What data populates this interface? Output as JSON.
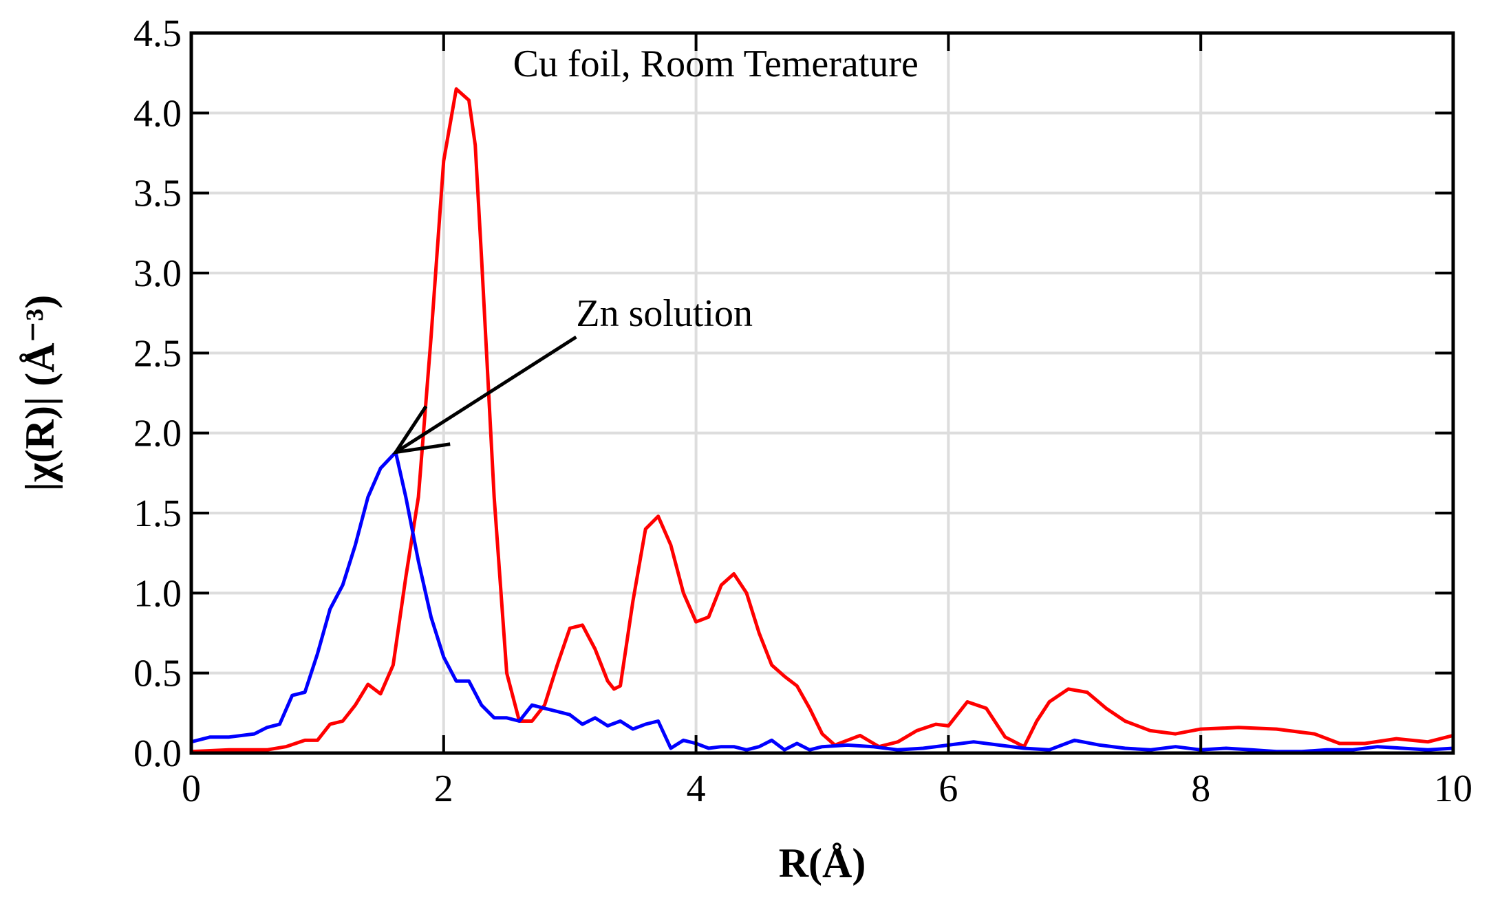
{
  "chart_data": {
    "type": "line",
    "title": "",
    "xlabel": "R(Å)",
    "ylabel": "|χ(R)| (Å⁻³)",
    "xlim": [
      0,
      10
    ],
    "ylim": [
      0,
      4.5
    ],
    "xticks": [
      0,
      2,
      4,
      6,
      8,
      10
    ],
    "xtick_labels": [
      "0",
      "2",
      "4",
      "6",
      "8",
      "10"
    ],
    "yticks": [
      0,
      0.5,
      1,
      1.5,
      2,
      2.5,
      3,
      3.5,
      4,
      4.5
    ],
    "ytick_labels": [
      "0.0",
      "0.5",
      "1.0",
      "1.5",
      "2.0",
      "2.5",
      "3.0",
      "3.5",
      "4.0",
      "4.5"
    ],
    "grid": true,
    "legend": "none",
    "annotations": [
      {
        "text": "Cu foil, Room Temerature",
        "x": 2.55,
        "y": 4.23
      },
      {
        "text": "Zn solution",
        "x": 3.05,
        "y": 2.67,
        "arrow_to": [
          1.62,
          1.88
        ],
        "arrow_from": [
          3.05,
          2.6
        ]
      }
    ],
    "series": [
      {
        "color": "#ff0000",
        "x": [
          0,
          0.3,
          0.6,
          0.75,
          0.9,
          1.0,
          1.1,
          1.2,
          1.3,
          1.4,
          1.5,
          1.6,
          1.7,
          1.8,
          1.9,
          2.0,
          2.1,
          2.2,
          2.25,
          2.3,
          2.4,
          2.5,
          2.6,
          2.7,
          2.8,
          2.9,
          3.0,
          3.1,
          3.2,
          3.3,
          3.35,
          3.4,
          3.5,
          3.6,
          3.7,
          3.8,
          3.9,
          4.0,
          4.1,
          4.2,
          4.3,
          4.4,
          4.5,
          4.6,
          4.7,
          4.8,
          4.9,
          5.0,
          5.1,
          5.3,
          5.45,
          5.6,
          5.75,
          5.9,
          6.0,
          6.15,
          6.3,
          6.45,
          6.6,
          6.7,
          6.8,
          6.95,
          7.1,
          7.25,
          7.4,
          7.6,
          7.8,
          8.0,
          8.3,
          8.6,
          8.9,
          9.1,
          9.3,
          9.55,
          9.8,
          10.0
        ],
        "values": [
          0.01,
          0.02,
          0.02,
          0.04,
          0.08,
          0.08,
          0.18,
          0.2,
          0.3,
          0.43,
          0.37,
          0.55,
          1.1,
          1.6,
          2.6,
          3.7,
          4.15,
          4.08,
          3.8,
          3.1,
          1.6,
          0.5,
          0.2,
          0.2,
          0.3,
          0.55,
          0.78,
          0.8,
          0.65,
          0.45,
          0.4,
          0.42,
          0.95,
          1.4,
          1.48,
          1.3,
          1.0,
          0.82,
          0.85,
          1.05,
          1.12,
          1.0,
          0.75,
          0.55,
          0.48,
          0.42,
          0.28,
          0.12,
          0.05,
          0.11,
          0.04,
          0.07,
          0.14,
          0.18,
          0.17,
          0.32,
          0.28,
          0.1,
          0.04,
          0.2,
          0.32,
          0.4,
          0.38,
          0.28,
          0.2,
          0.14,
          0.12,
          0.15,
          0.16,
          0.15,
          0.12,
          0.06,
          0.06,
          0.09,
          0.07,
          0.11
        ]
      },
      {
        "color": "#0000ff",
        "x": [
          0,
          0.15,
          0.3,
          0.5,
          0.6,
          0.7,
          0.8,
          0.9,
          1.0,
          1.1,
          1.2,
          1.3,
          1.4,
          1.5,
          1.62,
          1.7,
          1.8,
          1.9,
          2.0,
          2.1,
          2.2,
          2.3,
          2.4,
          2.5,
          2.6,
          2.7,
          2.8,
          2.9,
          3.0,
          3.1,
          3.2,
          3.3,
          3.4,
          3.5,
          3.6,
          3.7,
          3.8,
          3.9,
          4.0,
          4.1,
          4.2,
          4.3,
          4.4,
          4.5,
          4.6,
          4.7,
          4.8,
          4.9,
          5.0,
          5.2,
          5.4,
          5.6,
          5.8,
          6.0,
          6.2,
          6.4,
          6.6,
          6.8,
          7.0,
          7.2,
          7.4,
          7.6,
          7.8,
          8.0,
          8.2,
          8.4,
          8.6,
          8.8,
          9.0,
          9.2,
          9.4,
          9.6,
          9.8,
          10.0
        ],
        "values": [
          0.07,
          0.1,
          0.1,
          0.12,
          0.16,
          0.18,
          0.36,
          0.38,
          0.62,
          0.9,
          1.05,
          1.3,
          1.6,
          1.78,
          1.88,
          1.6,
          1.2,
          0.85,
          0.6,
          0.45,
          0.45,
          0.3,
          0.22,
          0.22,
          0.2,
          0.3,
          0.28,
          0.26,
          0.24,
          0.18,
          0.22,
          0.17,
          0.2,
          0.15,
          0.18,
          0.2,
          0.03,
          0.08,
          0.06,
          0.03,
          0.04,
          0.04,
          0.02,
          0.04,
          0.08,
          0.02,
          0.06,
          0.02,
          0.04,
          0.05,
          0.04,
          0.02,
          0.03,
          0.05,
          0.07,
          0.05,
          0.03,
          0.02,
          0.08,
          0.05,
          0.03,
          0.02,
          0.04,
          0.02,
          0.03,
          0.02,
          0.01,
          0.01,
          0.02,
          0.02,
          0.04,
          0.03,
          0.02,
          0.03
        ]
      }
    ]
  }
}
